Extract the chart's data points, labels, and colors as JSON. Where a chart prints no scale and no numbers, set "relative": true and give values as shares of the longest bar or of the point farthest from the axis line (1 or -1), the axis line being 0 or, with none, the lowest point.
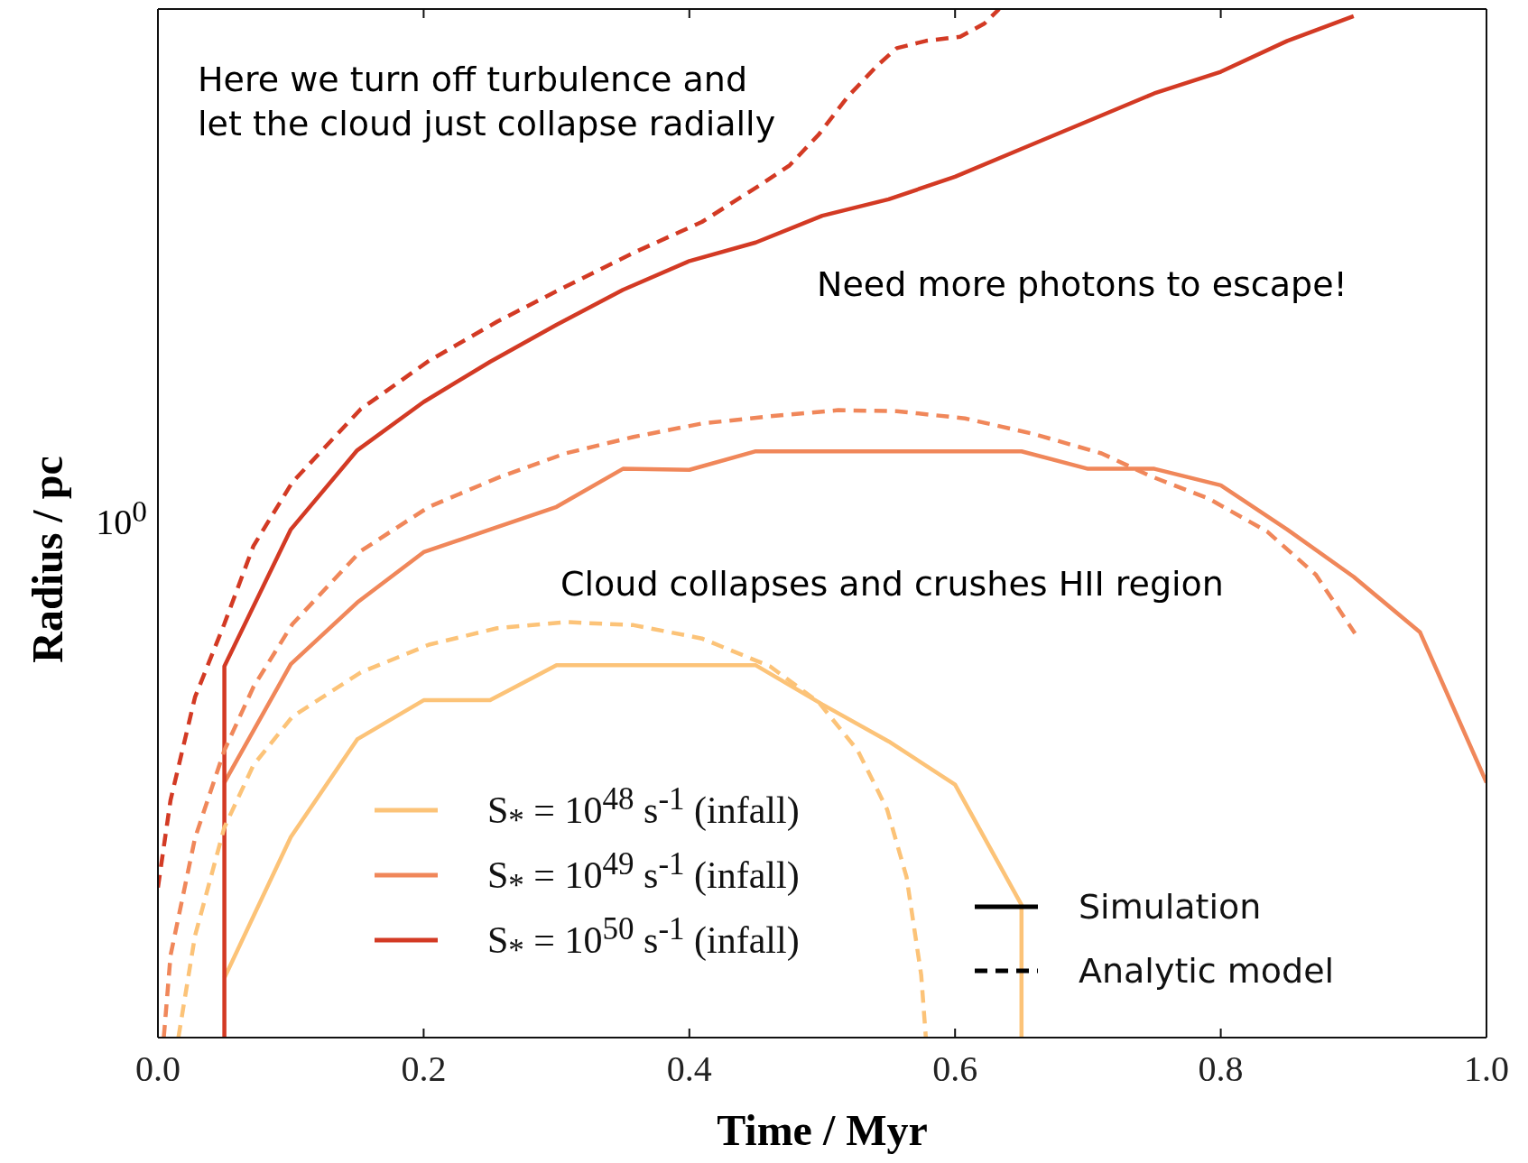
{
  "chart_data": {
    "type": "line",
    "xlabel": "Time / Myr",
    "ylabel": "Radius / pc",
    "relative": true,
    "xlim": [
      0,
      1
    ],
    "xticks": [
      {
        "value": 0,
        "label": "0.0"
      },
      {
        "value": 0.2,
        "label": "0.2"
      },
      {
        "value": 0.4,
        "label": "0.4"
      },
      {
        "value": 0.6,
        "label": "0.6"
      },
      {
        "value": 0.8,
        "label": "0.8"
      },
      {
        "value": 1,
        "label": "1.0"
      }
    ],
    "legend": "bottom",
    "series": [
      {
        "name": "S$_{*}$ = 10$^{48}$ s$^{-1}$ (infall)",
        "color": "#fcc378",
        "line_style": "solid",
        "x": [
          0.05,
          0.1,
          0.15,
          0.2,
          0.25,
          0.3,
          0.35,
          0.4,
          0.45,
          0.5,
          0.55,
          0.6,
          0.65,
          0.65
        ],
        "values": [
          0.058,
          0.195,
          0.29,
          0.328,
          0.328,
          0.362,
          0.362,
          0.362,
          0.362,
          0.324,
          0.288,
          0.246,
          0.129,
          0
        ]
      },
      {
        "name": "S$_{*}$ = 10$^{49}$ s$^{-1}$ (infall)",
        "color": "#f0875a",
        "line_style": "solid",
        "x": [
          0.05,
          0.1,
          0.15,
          0.2,
          0.25,
          0.3,
          0.35,
          0.4,
          0.45,
          0.5,
          0.55,
          0.6,
          0.65,
          0.7,
          0.75,
          0.8,
          0.85,
          0.9,
          0.95,
          1.0
        ],
        "values": [
          0.248,
          0.363,
          0.423,
          0.472,
          0.494,
          0.516,
          0.553,
          0.552,
          0.57,
          0.57,
          0.57,
          0.57,
          0.57,
          0.553,
          0.553,
          0.537,
          0.494,
          0.448,
          0.394,
          0.248
        ]
      },
      {
        "name": "S$_{*}$ = 10$^{50}$ s$^{-1}$ (infall)",
        "color": "#d33a24",
        "line_style": "solid",
        "x": [
          0.05,
          0.05,
          0.1,
          0.15,
          0.2,
          0.25,
          0.3,
          0.35,
          0.4,
          0.45,
          0.5,
          0.55,
          0.6,
          0.65,
          0.7,
          0.75,
          0.8,
          0.85,
          0.9
        ],
        "values": [
          0,
          0.361,
          0.494,
          0.571,
          0.618,
          0.657,
          0.693,
          0.727,
          0.755,
          0.773,
          0.799,
          0.815,
          0.837,
          0.864,
          0.891,
          0.918,
          0.939,
          0.969,
          0.993
        ]
      },
      {
        "color": "#fcc378",
        "line_style": "dashed",
        "x": [
          0.0154,
          0.0279,
          0.0499,
          0.0719,
          0.1012,
          0.1526,
          0.204,
          0.2553,
          0.3067,
          0.358,
          0.4094,
          0.4607,
          0.4974,
          0.5268,
          0.5488,
          0.5635,
          0.5745,
          0.578
        ],
        "values": [
          0,
          0.099,
          0.204,
          0.265,
          0.312,
          0.355,
          0.382,
          0.398,
          0.404,
          0.401,
          0.388,
          0.361,
          0.326,
          0.279,
          0.222,
          0.156,
          0.061,
          0
        ]
      },
      {
        "color": "#f0875a",
        "line_style": "dashed",
        "x": [
          0.0044,
          0.0095,
          0.0279,
          0.0499,
          0.0719,
          0.1012,
          0.1526,
          0.204,
          0.2553,
          0.3067,
          0.358,
          0.4094,
          0.4607,
          0.5121,
          0.5561,
          0.6075,
          0.6588,
          0.7102,
          0.7469,
          0.7909,
          0.8349,
          0.8716,
          0.901
        ],
        "values": [
          0,
          0.08,
          0.194,
          0.279,
          0.341,
          0.402,
          0.473,
          0.516,
          0.544,
          0.568,
          0.584,
          0.597,
          0.604,
          0.61,
          0.609,
          0.602,
          0.587,
          0.568,
          0.546,
          0.524,
          0.492,
          0.45,
          0.393
        ]
      },
      {
        "color": "#d33a24",
        "line_style": "dashed",
        "x": [
          0,
          0.0095,
          0.0279,
          0.0499,
          0.0719,
          0.1012,
          0.1526,
          0.204,
          0.2553,
          0.3067,
          0.358,
          0.4094,
          0.4534,
          0.4754,
          0.4974,
          0.5194,
          0.5414,
          0.5561,
          0.5781,
          0.6038,
          0.6222,
          0.6332
        ],
        "values": [
          0.146,
          0.231,
          0.331,
          0.402,
          0.478,
          0.54,
          0.611,
          0.658,
          0.696,
          0.73,
          0.763,
          0.793,
          0.829,
          0.848,
          0.878,
          0.915,
          0.945,
          0.962,
          0.969,
          0.973,
          0.986,
          1
        ]
      },
      {
        "name": "Simulation",
        "color": "#000000",
        "line_style": "solid"
      },
      {
        "name": "Analytic model",
        "color": "#000000",
        "line_style": "dashed"
      }
    ],
    "annotations": [
      "Here we turn off turbulence and\nlet the cloud just collapse radially",
      "Need more photons to escape!",
      "Cloud collapses and crushes HII region",
      "10$^{0}$"
    ]
  }
}
